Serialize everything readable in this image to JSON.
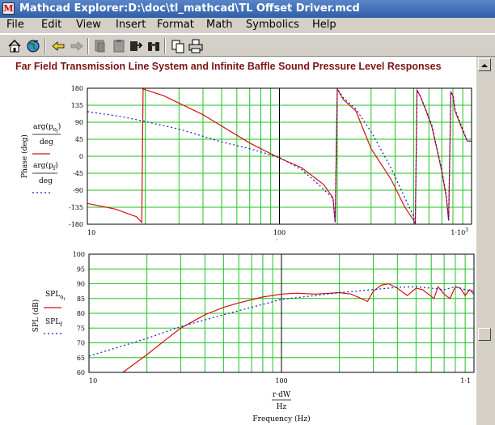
{
  "window": {
    "title": "Mathcad Explorer:D:\\doc\\tl_mathcad\\TL Offset Driver.mcd",
    "app_icon_glyph": "M"
  },
  "menu": {
    "items": [
      "File",
      "Edit",
      "View",
      "Insert",
      "Format",
      "Math",
      "Symbolics",
      "Help"
    ]
  },
  "toolbar": {
    "icons": [
      "home-icon",
      "globe-icon",
      "back-arrow-icon",
      "forward-arrow-icon",
      "copy-document-icon",
      "paste-document-icon",
      "paste-special-icon",
      "find-binoculars-icon",
      "copy-icon",
      "print-icon"
    ]
  },
  "document": {
    "title": "Far Field Transmission Line System and Infinite Baffle Sound Pressure Level Responses",
    "phase_plot": {
      "ylabel": "Phase (deg)",
      "legend_expr1_num": "arg(p",
      "legend_expr1_sub": "o",
      "legend_expr1_subsub": "f",
      "legend_expr1_den": "deg",
      "legend_expr2_num": "arg(p",
      "legend_expr2_sub": "f",
      "legend_expr2_den": "deg",
      "x_tick_labels": [
        "10",
        "100",
        "1·10"
      ],
      "x_tick_sup": "3",
      "y_tick_labels": [
        "180",
        "135",
        "90",
        "45",
        "0",
        "-45",
        "-90",
        "-135",
        "-180"
      ]
    },
    "spl_plot": {
      "ylabel": "SPL (dB)",
      "legend_expr1": "SPL",
      "legend_expr1_sub": "o",
      "legend_expr1_subsub": "f",
      "legend_expr2": "SPL",
      "legend_expr2_sub": "f",
      "x_tick_labels": [
        "10",
        "100",
        "1·1"
      ],
      "y_tick_labels": [
        "100",
        "95",
        "90",
        "85",
        "80",
        "75",
        "70",
        "65",
        "60"
      ],
      "xexpr_num": "r·dW",
      "xexpr_den": "Hz",
      "xlabel": "Frequency (Hz)"
    }
  },
  "colors": {
    "grid": "#22c322",
    "series_red": "#d81010",
    "series_blue": "#1a1ab8",
    "doc_title": "#7b1414"
  },
  "chart_data": [
    {
      "type": "line",
      "xlabel": "",
      "ylabel": "Phase (deg)",
      "xscale": "log",
      "xlim": [
        10,
        1000
      ],
      "ylim": [
        -180,
        180
      ],
      "grid": true,
      "series": [
        {
          "x": [
            10,
            14,
            18,
            19.2,
            19.5,
            25,
            40,
            70,
            100,
            130,
            170,
            190,
            195,
            200,
            215,
            250,
            300,
            380,
            450,
            500,
            510,
            520,
            540,
            580,
            620,
            660,
            700,
            740,
            760,
            780,
            800,
            820,
            880,
            950,
            1000
          ],
          "y": [
            -125,
            -140,
            -160,
            -175,
            178,
            160,
            110,
            35,
            -5,
            -30,
            -75,
            -110,
            -175,
            178,
            150,
            120,
            20,
            -60,
            -135,
            -170,
            -180,
            175,
            160,
            120,
            80,
            20,
            -40,
            -110,
            -170,
            170,
            160,
            120,
            80,
            40,
            40
          ]
        },
        {
          "x": [
            10,
            15,
            20,
            30,
            50,
            70,
            100,
            130,
            160,
            190,
            195,
            200,
            215,
            250,
            300,
            380,
            450,
            500,
            510,
            520,
            540,
            580,
            620,
            660,
            700,
            740,
            760,
            780,
            800,
            820,
            880,
            950,
            1000
          ],
          "y": [
            118,
            105,
            92,
            72,
            38,
            20,
            -3,
            -35,
            -75,
            -112,
            -175,
            178,
            155,
            125,
            65,
            -30,
            -110,
            -160,
            -180,
            175,
            160,
            122,
            85,
            22,
            -35,
            -105,
            -170,
            170,
            162,
            125,
            85,
            40,
            40
          ]
        }
      ]
    },
    {
      "type": "line",
      "xlabel": "Frequency (Hz)",
      "ylabel": "SPL (dB)",
      "xscale": "log",
      "xlim": [
        10,
        1000
      ],
      "ylim": [
        60,
        100
      ],
      "grid": true,
      "series": [
        {
          "x": [
            15,
            20,
            25,
            30,
            40,
            50,
            60,
            80,
            100,
            120,
            150,
            200,
            230,
            260,
            280,
            300,
            330,
            360,
            400,
            450,
            500,
            540,
            580,
            620,
            650,
            700,
            750,
            800,
            850,
            900,
            950,
            1000
          ],
          "y": [
            60,
            66,
            71,
            75,
            79.5,
            82,
            83.5,
            85.5,
            86.5,
            86.8,
            86.5,
            87,
            86.5,
            85,
            84,
            87.5,
            89.5,
            90,
            88.5,
            86,
            88.5,
            88,
            86.5,
            85,
            89,
            86.5,
            85,
            89,
            88.5,
            86,
            88,
            86.5
          ]
        },
        {
          "x": [
            10,
            15,
            20,
            30,
            50,
            80,
            100,
            150,
            200,
            300,
            400,
            500,
            600,
            700,
            800,
            900,
            1000
          ],
          "y": [
            65.5,
            69,
            71.5,
            75.5,
            79.5,
            83,
            84.7,
            86,
            87,
            88,
            88.8,
            89,
            88.5,
            88,
            89,
            88,
            87.5
          ]
        }
      ]
    }
  ]
}
